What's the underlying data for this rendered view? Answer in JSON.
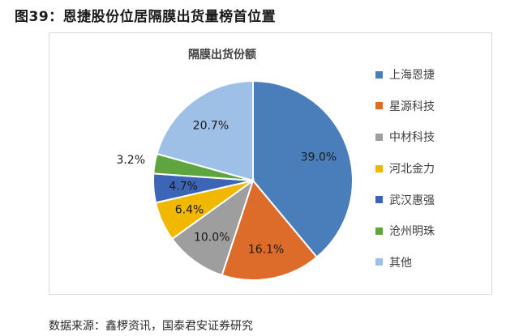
{
  "figure_title": "图39：恩捷股份位居隔膜出货量榜首位置",
  "source": "数据来源：鑫椤资讯，国泰君安证券研究",
  "chart_data": {
    "type": "pie",
    "title": "隔膜出货份额",
    "legend_position": "right",
    "slices": [
      {
        "name": "上海恩捷",
        "value": 39.0,
        "label": "39.0%",
        "color": "#4a7ebb"
      },
      {
        "name": "星源科技",
        "value": 16.1,
        "label": "16.1%",
        "color": "#dd6b2a"
      },
      {
        "name": "中材科技",
        "value": 10.0,
        "label": "10.0%",
        "color": "#9e9e9e"
      },
      {
        "name": "河北金力",
        "value": 6.4,
        "label": "6.4%",
        "color": "#f1b800"
      },
      {
        "name": "武汉惠强",
        "value": 4.7,
        "label": "4.7%",
        "color": "#3c65b5"
      },
      {
        "name": "沧州明珠",
        "value": 3.2,
        "label": "3.2%",
        "color": "#5ea53f"
      },
      {
        "name": "其他",
        "value": 20.7,
        "label": "20.7%",
        "color": "#9ec0e6"
      }
    ]
  }
}
